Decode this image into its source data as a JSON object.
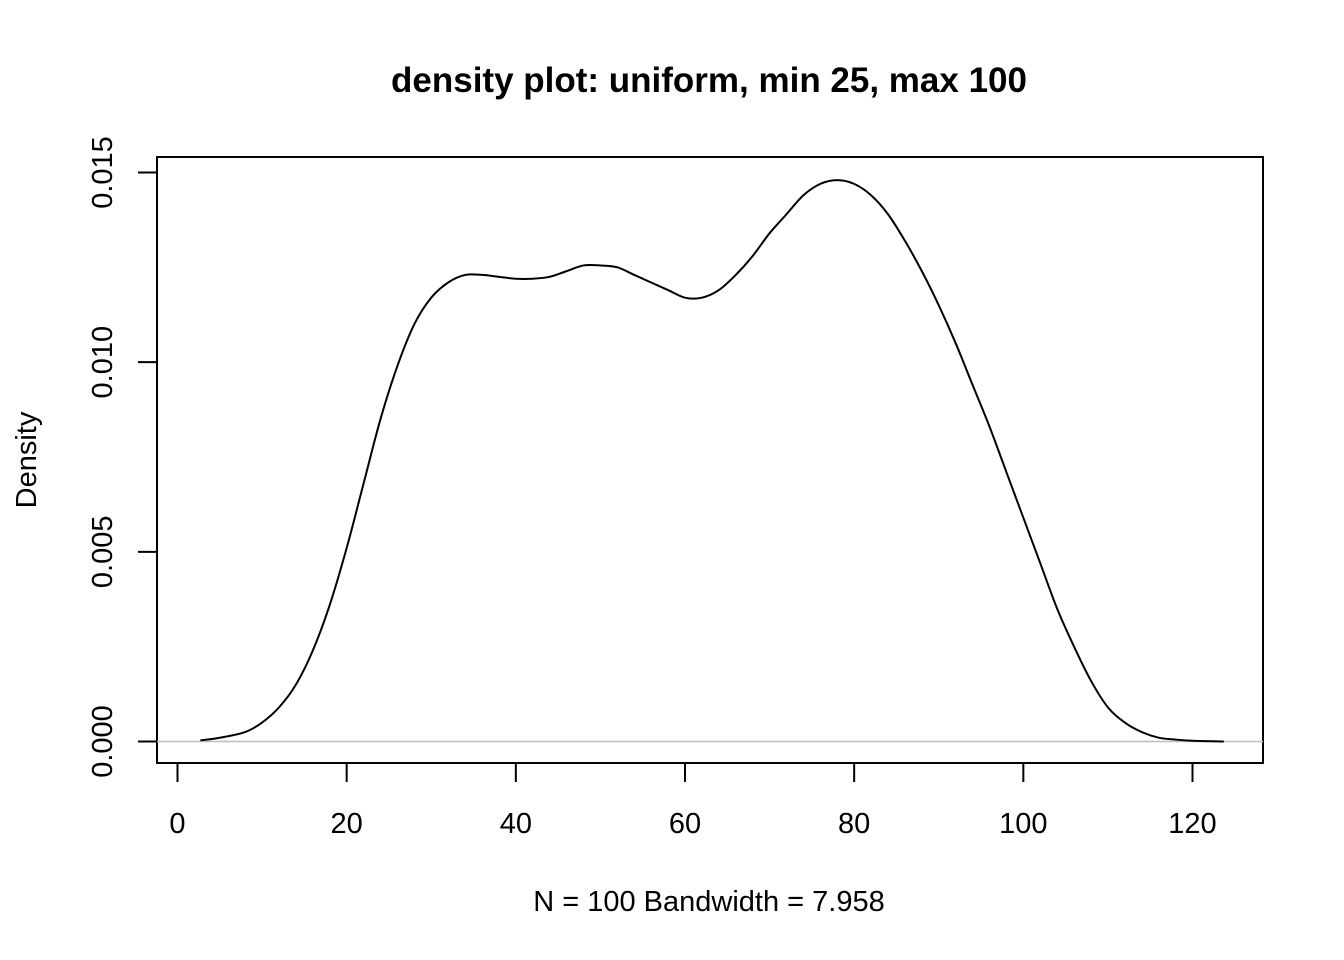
{
  "chart_data": {
    "type": "line",
    "title": "density plot: uniform, min 25, max 100",
    "xlabel": "N = 100   Bandwidth = 7.958",
    "ylabel": "Density",
    "xlim": [
      0,
      124
    ],
    "ylim": [
      0,
      0.015
    ],
    "x_ticks": [
      0,
      20,
      40,
      60,
      80,
      100,
      120
    ],
    "x_tick_labels": [
      "0",
      "20",
      "40",
      "60",
      "80",
      "100",
      "120"
    ],
    "y_ticks": [
      0,
      0.005,
      0.01,
      0.015
    ],
    "y_tick_labels": [
      "0.000",
      "0.005",
      "0.010",
      "0.015"
    ],
    "baseline": 0,
    "grid": false,
    "legend": "none",
    "series": [
      {
        "x": [
          2.7,
          5,
          8,
          10,
          12,
          14,
          16,
          18,
          20,
          22,
          24,
          26,
          28,
          30,
          32,
          34,
          36,
          38,
          40,
          42,
          44,
          46,
          48,
          50,
          52,
          54,
          56,
          58,
          60,
          62,
          64,
          66,
          68,
          70,
          72,
          74,
          76,
          78,
          80,
          82,
          84,
          86,
          88,
          90,
          92,
          94,
          96,
          98,
          100,
          102,
          104,
          106,
          108,
          110,
          112,
          114,
          116,
          118,
          120,
          123.7
        ],
        "y": [
          3e-05,
          0.0001,
          0.00025,
          0.0005,
          0.0009,
          0.0015,
          0.0024,
          0.0036,
          0.0051,
          0.0068,
          0.0085,
          0.0099,
          0.011,
          0.0117,
          0.0121,
          0.0123,
          0.0123,
          0.01225,
          0.0122,
          0.0122,
          0.01225,
          0.0124,
          0.01255,
          0.01255,
          0.0125,
          0.0123,
          0.0121,
          0.0119,
          0.0117,
          0.0117,
          0.0119,
          0.0123,
          0.0128,
          0.0134,
          0.0139,
          0.0144,
          0.0147,
          0.0148,
          0.0147,
          0.0144,
          0.0139,
          0.0132,
          0.0124,
          0.0115,
          0.0105,
          0.0094,
          0.0083,
          0.0071,
          0.0059,
          0.0047,
          0.0035,
          0.0025,
          0.0016,
          0.0009,
          0.0005,
          0.00025,
          0.0001,
          5e-05,
          2e-05,
          0.0
        ]
      }
    ]
  },
  "colors": {
    "line": "#000000",
    "baseline": "#bebebe",
    "background": "#ffffff"
  }
}
